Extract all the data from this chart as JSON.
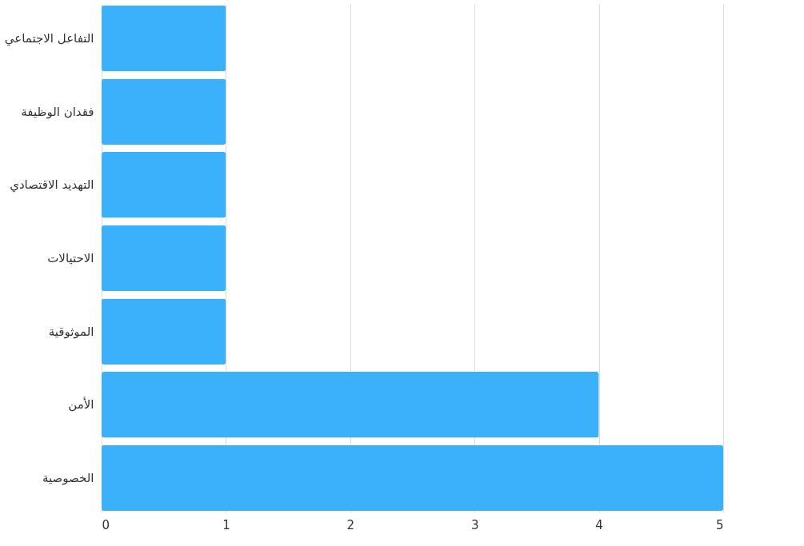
{
  "chart_data": {
    "type": "bar",
    "orientation": "horizontal",
    "categories": [
      "التفاعل الاجتماعي",
      "فقدان الوظيفة",
      "التهديد الاقتصادي",
      "الاحتيالات",
      "الموثوقية",
      "الأمن",
      "الخصوصية"
    ],
    "values": [
      1,
      1,
      1,
      1,
      1,
      4,
      5
    ],
    "color": "#3bb0fb",
    "xlim": [
      0,
      5
    ],
    "xticks": [
      0,
      1,
      2,
      3,
      4,
      5
    ],
    "grid": "x"
  }
}
